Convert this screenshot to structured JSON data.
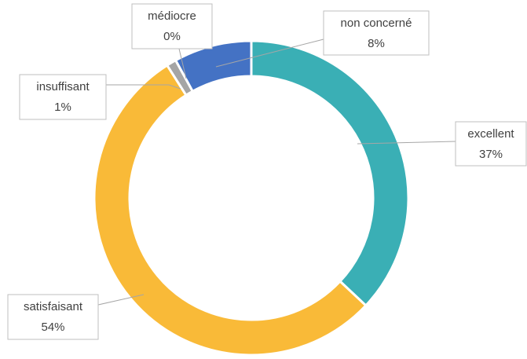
{
  "chart_data": {
    "type": "donut",
    "categories": [
      "excellent",
      "satisfaisant",
      "insuffisant",
      "médiocre",
      "non concerné"
    ],
    "values": [
      37,
      54,
      1,
      0,
      8
    ],
    "value_labels": [
      "37%",
      "54%",
      "1%",
      "0%",
      "8%"
    ],
    "colors": [
      "#3aafb5",
      "#f9ba38",
      "#a5a5a5",
      "#264478",
      "#4472c4"
    ]
  }
}
